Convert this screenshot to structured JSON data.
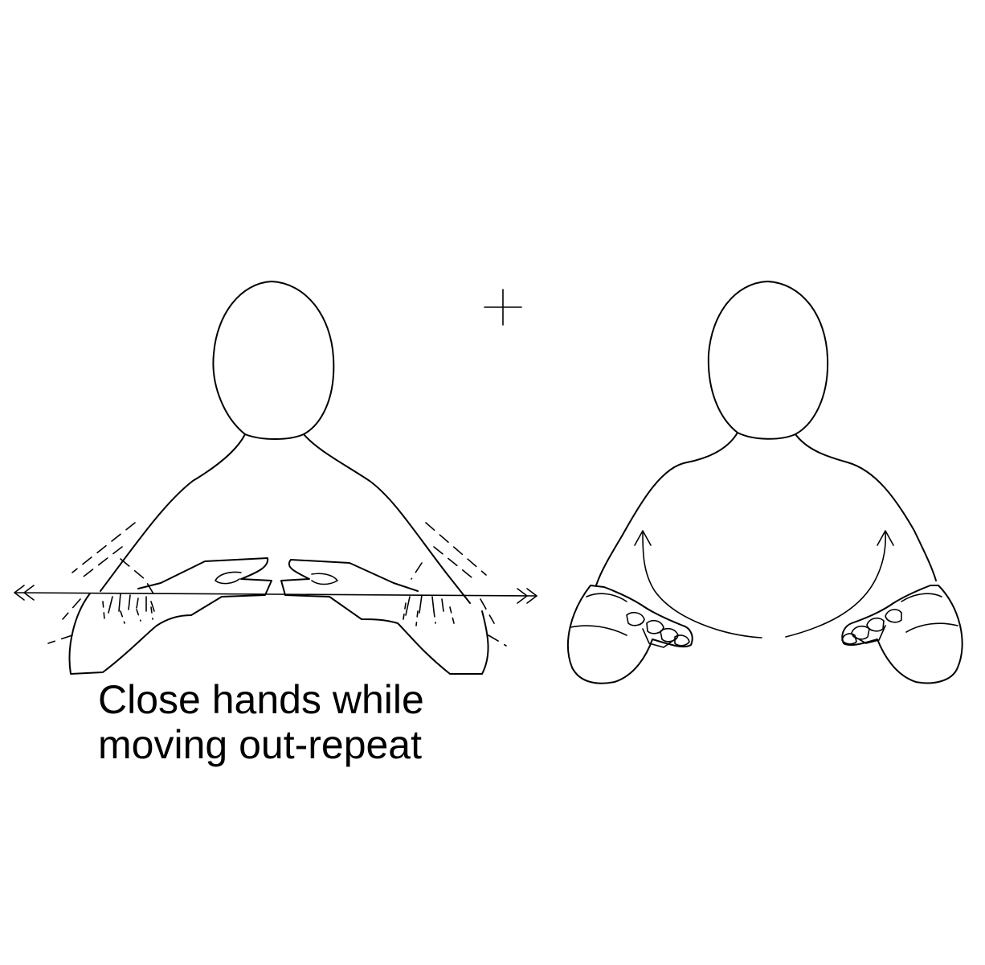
{
  "caption": {
    "line1": "Close hands while",
    "line2": "moving out-repeat"
  },
  "colors": {
    "ink": "#000000",
    "background": "#ffffff"
  },
  "icons": {
    "separator": "plus-sign",
    "movement_left": "double-arrow-left",
    "movement_right": "double-arrow-right",
    "movement_up": "curved-arrow-up"
  }
}
